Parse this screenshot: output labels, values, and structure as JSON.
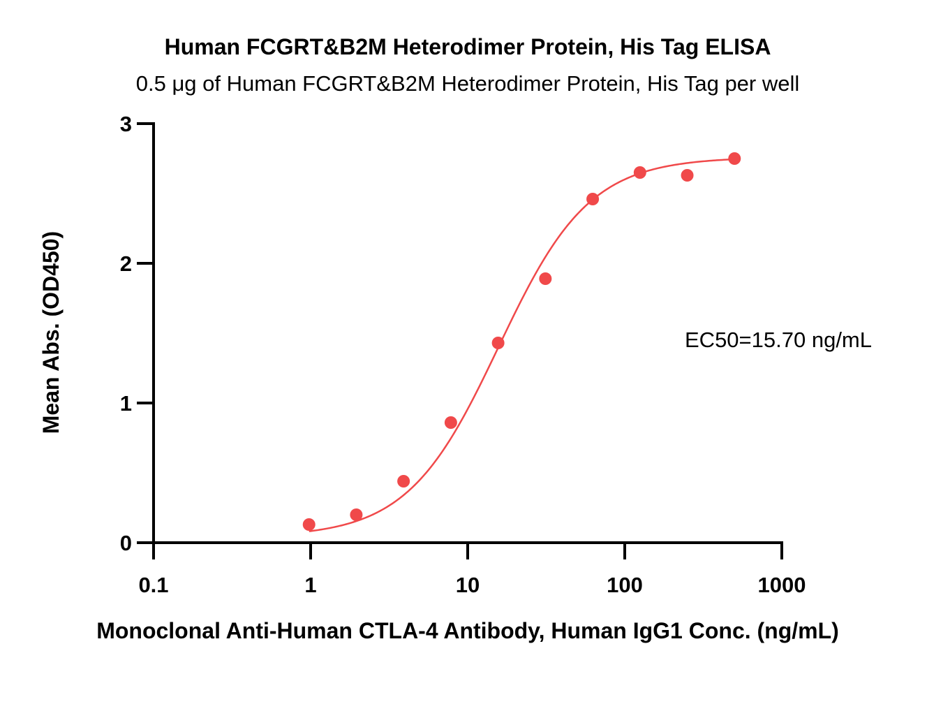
{
  "chart_data": {
    "type": "scatter",
    "title": "Human FCGRT&B2M Heterodimer Protein, His Tag ELISA",
    "subtitle": "0.5 μg of Human FCGRT&B2M Heterodimer Protein, His Tag per well",
    "xlabel": "Monoclonal Anti-Human CTLA-4 Antibody, Human IgG1 Conc. (ng/mL)",
    "ylabel": "Mean Abs. (OD450)",
    "x_scale": "log",
    "xlim": [
      0.1,
      1000
    ],
    "ylim": [
      0,
      3
    ],
    "x_ticks": [
      0.1,
      1,
      10,
      100,
      1000
    ],
    "x_tick_labels": [
      "0.1",
      "1",
      "10",
      "100",
      "1000"
    ],
    "y_ticks": [
      0,
      1,
      2,
      3
    ],
    "y_tick_labels": [
      "0",
      "1",
      "2",
      "3"
    ],
    "grid": false,
    "series": [
      {
        "x": [
          0.977,
          1.953,
          3.906,
          7.813,
          15.625,
          31.25,
          62.5,
          125,
          250,
          500
        ],
        "y": [
          0.13,
          0.2,
          0.44,
          0.86,
          1.43,
          1.89,
          2.46,
          2.65,
          2.63,
          2.75
        ],
        "color": "#f0494a",
        "fit": "four-parameter logistic"
      }
    ],
    "annotations": [
      {
        "text": "EC50=15.70 ng/mL"
      }
    ]
  }
}
